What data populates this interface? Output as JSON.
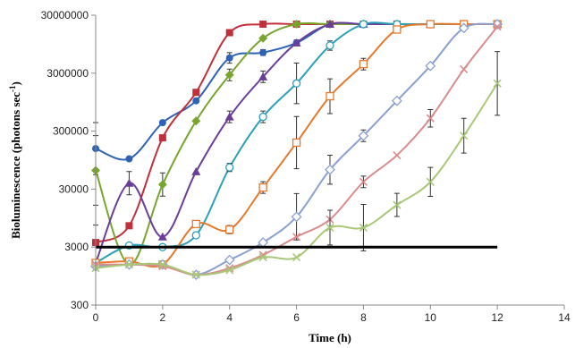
{
  "chart_data": {
    "type": "line",
    "title": "",
    "xlabel": "Time (h)",
    "ylabel_main": "Bioluminescence (photons sec",
    "ylabel_sup": "-1",
    "ylabel_close": ")",
    "y_scale": "log",
    "xlim": [
      0,
      14
    ],
    "ylim": [
      300,
      30000000
    ],
    "x_ticks": [
      0,
      2,
      4,
      6,
      8,
      10,
      12,
      14
    ],
    "x_tick_labels": [
      "0",
      "2",
      "4",
      "6",
      "8",
      "10",
      "12",
      "14"
    ],
    "y_ticks": [
      300,
      3000,
      30000,
      300000,
      3000000,
      30000000
    ],
    "y_tick_labels": [
      "300",
      "3000",
      "30000",
      "300000",
      "3000000",
      "30000000"
    ],
    "grid": false,
    "legend": "none",
    "threshold": {
      "y": 3000,
      "x_range": [
        0,
        12
      ],
      "color": "#000000"
    },
    "series": [
      {
        "color": "#2e62b4",
        "marker": "circle-filled",
        "x": [
          0,
          1,
          2,
          3,
          4,
          5,
          6,
          7,
          8,
          9,
          10,
          11,
          12
        ],
        "y": [
          150000,
          100000,
          420000,
          1000000,
          5500000,
          6800000,
          10000000,
          21000000,
          21000000,
          21000000,
          21000000,
          21000000,
          21000000
        ],
        "err": [
          0.45,
          0,
          0,
          0,
          0.09,
          0.05,
          0.05,
          0,
          0,
          0,
          0,
          0,
          0
        ]
      },
      {
        "color": "#c0303a",
        "marker": "square-filled",
        "x": [
          0,
          1,
          2,
          3,
          4,
          5,
          6,
          7,
          8,
          9,
          10,
          11,
          12
        ],
        "y": [
          3600,
          7000,
          230000,
          1400000,
          15000000,
          21000000,
          21000000,
          21000000,
          21000000,
          21000000,
          21000000,
          21000000,
          21000000
        ],
        "err": [
          0.3,
          0,
          0,
          0,
          0,
          0,
          0,
          0,
          0,
          0,
          0,
          0,
          0
        ]
      },
      {
        "color": "#78a52e",
        "marker": "diamond-filled",
        "x": [
          0,
          1,
          2,
          3,
          4,
          5,
          6,
          7,
          8,
          9,
          10,
          11,
          12
        ],
        "y": [
          63000,
          1500,
          36000,
          450000,
          2800000,
          12000000,
          21000000,
          21000000,
          21000000,
          21000000,
          21000000,
          21000000,
          21000000
        ],
        "err": [
          0.6,
          0,
          0.2,
          0,
          0.1,
          0,
          0,
          0,
          0,
          0,
          0,
          0,
          0
        ]
      },
      {
        "color": "#6a3d98",
        "marker": "triangle-filled",
        "x": [
          0,
          1,
          2,
          3,
          4,
          5,
          6,
          7,
          8,
          9,
          10,
          11,
          12
        ],
        "y": [
          1600,
          38000,
          4500,
          60000,
          530000,
          2600000,
          10000000,
          21000000,
          21000000,
          21000000,
          21000000,
          21000000,
          21000000
        ],
        "err": [
          0,
          0.2,
          0,
          0,
          0.1,
          0.1,
          0,
          0,
          0,
          0,
          0,
          0,
          0
        ]
      },
      {
        "color": "#2aa0b8",
        "marker": "circle-open",
        "x": [
          0,
          1,
          2,
          3,
          4,
          5,
          6,
          7,
          8,
          9,
          10,
          11,
          12
        ],
        "y": [
          1600,
          3200,
          3000,
          4800,
          71000,
          530000,
          2000000,
          9000000,
          21000000,
          21000000,
          21000000,
          21000000,
          21000000
        ],
        "err": [
          0,
          0,
          0,
          0,
          0.07,
          0.1,
          0.35,
          0.08,
          0,
          0,
          0,
          0,
          0
        ]
      },
      {
        "color": "#e6782c",
        "marker": "square-open",
        "x": [
          0,
          1,
          2,
          3,
          4,
          5,
          6,
          7,
          8,
          9,
          10,
          11,
          12
        ],
        "y": [
          1600,
          1700,
          1500,
          7500,
          6000,
          32000,
          190000,
          1200000,
          4300000,
          17000000,
          21000000,
          21000000,
          21000000
        ],
        "err": [
          0,
          0,
          0,
          0,
          0.07,
          0.1,
          0.45,
          0.3,
          0.1,
          0,
          0,
          0,
          0
        ]
      },
      {
        "color": "#8aa0d0",
        "marker": "diamond-open",
        "x": [
          0,
          1,
          2,
          3,
          4,
          5,
          6,
          7,
          8,
          9,
          10,
          11,
          12
        ],
        "y": [
          1400,
          1500,
          1500,
          1000,
          1800,
          3600,
          10000,
          65000,
          250000,
          1000000,
          4000000,
          18000000,
          21000000
        ],
        "err": [
          0,
          0,
          0,
          0,
          0,
          0,
          0.4,
          0.25,
          0.1,
          0,
          0,
          0,
          0
        ]
      },
      {
        "color": "#d98c8c",
        "marker": "x",
        "x": [
          0,
          1,
          2,
          3,
          4,
          5,
          6,
          7,
          8,
          9,
          10,
          11,
          12
        ],
        "y": [
          1500,
          1500,
          1400,
          1000,
          1300,
          2200,
          4500,
          9000,
          40000,
          115000,
          500000,
          3500000,
          19000000
        ],
        "err": [
          0,
          0,
          0,
          0,
          0,
          0,
          0,
          0,
          0.1,
          0,
          0.15,
          0,
          0
        ]
      },
      {
        "color": "#a8c878",
        "marker": "x",
        "x": [
          0,
          1,
          2,
          3,
          4,
          5,
          6,
          7,
          8,
          9,
          10,
          11,
          12
        ],
        "y": [
          1300,
          1500,
          1500,
          1000,
          1200,
          2000,
          2000,
          6500,
          6500,
          16000,
          40000,
          250000,
          2000000
        ],
        "err": [
          0,
          0,
          0,
          0,
          0,
          0,
          0,
          0.3,
          0.4,
          0.2,
          0.25,
          0.3,
          0.55
        ]
      }
    ]
  }
}
